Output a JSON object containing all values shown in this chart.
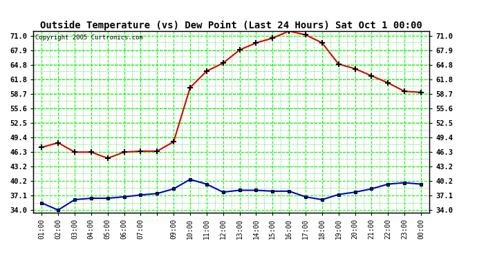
{
  "title": "Outside Temperature (vs) Dew Point (Last 24 Hours) Sat Oct 1 00:00",
  "copyright": "Copyright 2005 Curtronics.com",
  "background_color": "#ffffff",
  "plot_bg_color": "#ffffff",
  "grid_color": "#00ff00",
  "grid_minor_color": "#00cc00",
  "x_labels": [
    "01:00",
    "02:00",
    "03:00",
    "04:00",
    "05:00",
    "06:00",
    "07:00",
    "",
    "09:00",
    "10:00",
    "11:00",
    "12:00",
    "13:00",
    "14:00",
    "15:00",
    "16:00",
    "17:00",
    "18:00",
    "19:00",
    "20:00",
    "21:00",
    "22:00",
    "23:00",
    "00:00"
  ],
  "yticks": [
    34.0,
    37.1,
    40.2,
    43.2,
    46.3,
    49.4,
    52.5,
    55.6,
    58.7,
    61.8,
    64.8,
    67.9,
    71.0
  ],
  "ylim": [
    33.5,
    72.0
  ],
  "temp_color": "#dd0000",
  "dew_color": "#0000cc",
  "temp_data": [
    47.3,
    48.3,
    46.3,
    46.3,
    45.0,
    46.3,
    46.5,
    46.5,
    48.5,
    60.0,
    63.5,
    65.2,
    68.0,
    69.5,
    70.5,
    72.0,
    71.2,
    69.5,
    65.0,
    64.0,
    62.5,
    61.0,
    59.2,
    59.0
  ],
  "dew_data": [
    35.5,
    34.0,
    36.2,
    36.5,
    36.5,
    36.8,
    37.2,
    37.5,
    38.5,
    40.5,
    39.5,
    37.8,
    38.2,
    38.2,
    38.0,
    38.0,
    36.8,
    36.2,
    37.3,
    37.8,
    38.5,
    39.5,
    39.8,
    39.5
  ]
}
